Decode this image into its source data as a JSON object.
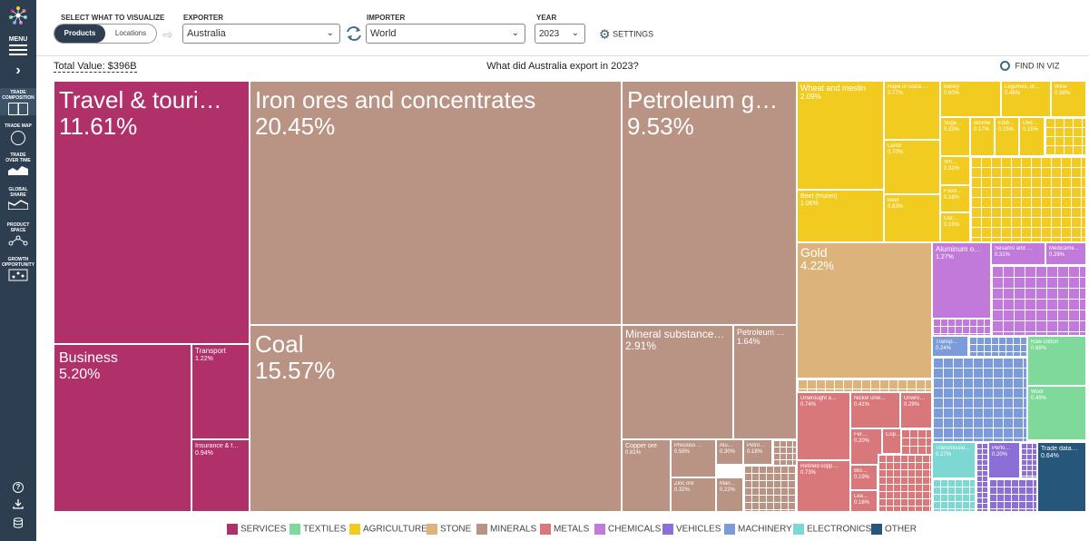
{
  "sidebar": {
    "menu": "MENU",
    "items": [
      {
        "label": "TRADE COMPOSITION"
      },
      {
        "label": "TRADE MAP"
      },
      {
        "label": "TRADE OVER TIME"
      },
      {
        "label": "GLOBAL SHARE"
      },
      {
        "label": "PRODUCT SPACE"
      },
      {
        "label": "GROWTH OPPORTUNITY"
      }
    ]
  },
  "header": {
    "select_label": "SELECT WHAT TO VISUALIZE",
    "products": "Products",
    "locations": "Locations",
    "exporter_label": "EXPORTER",
    "exporter": "Australia",
    "importer_label": "IMPORTER",
    "importer": "World",
    "year_label": "YEAR",
    "year": "2023",
    "settings": "SETTINGS"
  },
  "title_row": {
    "total": "Total Value: $396B",
    "question": "What did Australia export in 2023?",
    "find": "FIND IN VIZ"
  },
  "colors": {
    "services": "#b0306a",
    "textiles": "#7fd99a",
    "agriculture": "#f2cb21",
    "stone": "#dcb37a",
    "minerals": "#b99384",
    "metals": "#d9787a",
    "chemicals": "#c17ad9",
    "vehicles": "#8c6fd6",
    "machinery": "#7b9bd9",
    "electronics": "#7dd8d4",
    "other": "#26567a"
  },
  "tiles": [
    {
      "name": "Travel & touri…",
      "pct": "11.61%"
    },
    {
      "name": "Business",
      "pct": "5.20%"
    },
    {
      "name": "Transport",
      "pct": "1.22%"
    },
    {
      "name": "Insurance & f…",
      "pct": "0.94%"
    },
    {
      "name": "Iron ores and concentrates",
      "pct": "20.45%"
    },
    {
      "name": "Coal",
      "pct": "15.57%"
    },
    {
      "name": "Petroleum g…",
      "pct": "9.53%"
    },
    {
      "name": "Mineral substance…",
      "pct": "2.91%"
    },
    {
      "name": "Petroleum …",
      "pct": "1.64%"
    },
    {
      "name": "Copper ore",
      "pct": "0.81%"
    },
    {
      "name": "Precious …",
      "pct": "0.58%"
    },
    {
      "name": "Zinc ore",
      "pct": "0.32%"
    },
    {
      "name": "Alu…",
      "pct": "0.30%"
    },
    {
      "name": "Petro…",
      "pct": "0.18%"
    },
    {
      "name": "Man…",
      "pct": "0.22%"
    },
    {
      "name": "Wheat and meslin",
      "pct": "2.09%"
    },
    {
      "name": "Rape or colza …",
      "pct": "0.77%"
    },
    {
      "name": "Barley",
      "pct": "0.60%"
    },
    {
      "name": "Legumes, dr…",
      "pct": "0.46%"
    },
    {
      "name": "Wine",
      "pct": "0.38%"
    },
    {
      "name": "Lamb",
      "pct": "0.70%"
    },
    {
      "name": "Suga…",
      "pct": "0.33%"
    },
    {
      "name": "Bovine",
      "pct": "0.17%"
    },
    {
      "name": "Edibl…",
      "pct": "0.15%"
    },
    {
      "name": "Ove…",
      "pct": "0.15%"
    },
    {
      "name": "Wh…",
      "pct": "0.31%"
    },
    {
      "name": "Beef (frozen)",
      "pct": "1.06%"
    },
    {
      "name": "Beef",
      "pct": "0.83%"
    },
    {
      "name": "Food…",
      "pct": "0.18%"
    },
    {
      "name": "Oat…",
      "pct": "0.16%"
    },
    {
      "name": "Gold",
      "pct": "4.22%"
    },
    {
      "name": "Aluminum o…",
      "pct": "1.27%"
    },
    {
      "name": "Sesamo and …",
      "pct": "0.31%"
    },
    {
      "name": "Medicame…",
      "pct": "0.29%"
    },
    {
      "name": "Unwrought a…",
      "pct": "0.74%"
    },
    {
      "name": "Nickel unw…",
      "pct": "0.41%"
    },
    {
      "name": "Unwro…",
      "pct": "0.29%"
    },
    {
      "name": "Refined copp…",
      "pct": "0.73%"
    },
    {
      "name": "Fer…",
      "pct": "0.20%"
    },
    {
      "name": "Cop…",
      "pct": ""
    },
    {
      "name": "Blo…",
      "pct": "0.19%"
    },
    {
      "name": "Lea…",
      "pct": "0.16%"
    },
    {
      "name": "Transp…",
      "pct": "0.24%"
    },
    {
      "name": "Raw cotton",
      "pct": "0.68%"
    },
    {
      "name": "Wool",
      "pct": "0.49%"
    },
    {
      "name": "Transmissio…",
      "pct": "0.27%"
    },
    {
      "name": "Perfo…",
      "pct": "0.20%"
    },
    {
      "name": "Trade data…",
      "pct": "0.64%"
    }
  ],
  "legend": [
    "SERVICES",
    "TEXTILES",
    "AGRICULTURE",
    "STONE",
    "MINERALS",
    "METALS",
    "CHEMICALS",
    "VEHICLES",
    "MACHINERY",
    "ELECTRONICS",
    "OTHER"
  ]
}
